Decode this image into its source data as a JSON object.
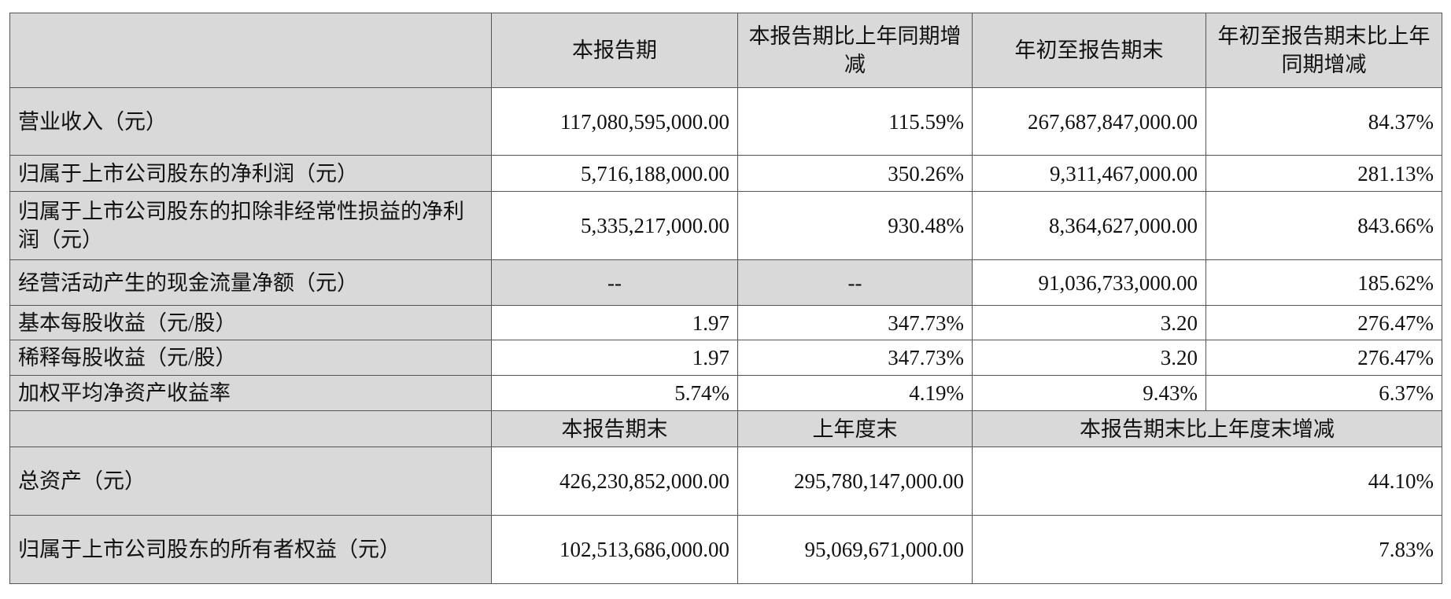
{
  "header": [
    "",
    "本报告期",
    "本报告期比上年同期增减",
    "年初至报告期末",
    "年初至报告期末比上年同期增减"
  ],
  "rows": [
    {
      "label": "营业收入（元）",
      "values": [
        "117,080,595,000.00",
        "115.59%",
        "267,687,847,000.00",
        "84.37%"
      ]
    },
    {
      "label": "归属于上市公司股东的净利润（元）",
      "values": [
        "5,716,188,000.00",
        "350.26%",
        "9,311,467,000.00",
        "281.13%"
      ]
    },
    {
      "label": "归属于上市公司股东的扣除非经常性损益的净利润（元）",
      "values": [
        "5,335,217,000.00",
        "930.48%",
        "8,364,627,000.00",
        "843.66%"
      ]
    },
    {
      "label": "经营活动产生的现金流量净额（元）",
      "values": [
        "--",
        "--",
        "91,036,733,000.00",
        "185.62%"
      ]
    },
    {
      "label": "基本每股收益（元/股）",
      "values": [
        "1.97",
        "347.73%",
        "3.20",
        "276.47%"
      ]
    },
    {
      "label": "稀释每股收益（元/股）",
      "values": [
        "1.97",
        "347.73%",
        "3.20",
        "276.47%"
      ]
    },
    {
      "label": "加权平均净资产收益率",
      "values": [
        "5.74%",
        "4.19%",
        "9.43%",
        "6.37%"
      ]
    }
  ],
  "subheader": [
    "",
    "本报告期末",
    "上年度末",
    "本报告期末比上年度末增减"
  ],
  "rows2": [
    {
      "label": "总资产（元）",
      "values": [
        "426,230,852,000.00",
        "295,780,147,000.00",
        "44.10%"
      ]
    },
    {
      "label": "归属于上市公司股东的所有者权益（元）",
      "values": [
        "102,513,686,000.00",
        "95,069,671,000.00",
        "7.83%"
      ]
    }
  ],
  "colors": {
    "header_bg": "#d9d9d9",
    "border": "#555555"
  }
}
